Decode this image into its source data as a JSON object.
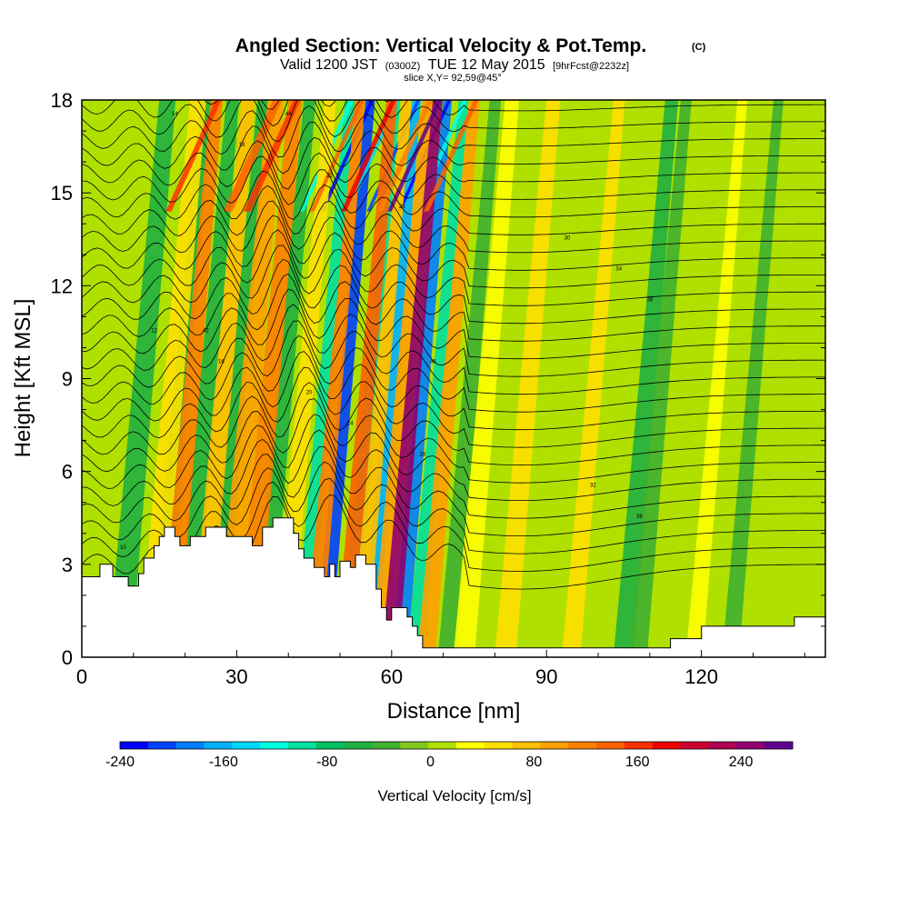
{
  "chart_data": {
    "type": "heatmap",
    "title": "Angled Section: Vertical Velocity & Pot.Temp.",
    "title_mark": "(C)",
    "subtitle_main": "Valid 1200 JST",
    "subtitle_z": "(0300Z)",
    "subtitle_date": "TUE 12 May 2015",
    "subtitle_fcst": "[9hrFcst@2232z]",
    "slice_text": "slice X,Y= 92,59@45°",
    "xlabel": "Distance [nm]",
    "ylabel": "Height [Kft MSL]",
    "xlim": [
      0,
      144
    ],
    "ylim": [
      0,
      18
    ],
    "x_ticks": [
      "0",
      "30",
      "60",
      "90",
      "120"
    ],
    "x_tick_values": [
      0,
      30,
      60,
      90,
      120
    ],
    "y_ticks": [
      "0",
      "3",
      "6",
      "9",
      "12",
      "15",
      "18"
    ],
    "y_tick_values": [
      0,
      3,
      6,
      9,
      12,
      15,
      18
    ],
    "colorbar": {
      "label": "Vertical Velocity [cm/s]",
      "range": [
        -240,
        280
      ],
      "tick_labels": [
        "-240",
        "-160",
        "-80",
        "0",
        "80",
        "160",
        "240"
      ],
      "tick_values": [
        -240,
        -160,
        -80,
        0,
        80,
        160,
        240
      ],
      "colors": [
        "#0000ff",
        "#0040ff",
        "#0080ff",
        "#00b0ff",
        "#00d8ff",
        "#00ffe0",
        "#00e0a0",
        "#00c060",
        "#20b040",
        "#40b030",
        "#80c820",
        "#b0e000",
        "#ffff00",
        "#ffe000",
        "#ffc000",
        "#ffa000",
        "#ff8000",
        "#ff6000",
        "#ff3000",
        "#ee0000",
        "#cc0030",
        "#b00050",
        "#900070",
        "#600090"
      ]
    },
    "background_color": "#b0e000",
    "updraft_bands": [
      {
        "x": 12,
        "w": 2.4,
        "v": 60
      },
      {
        "x": 16,
        "w": 1.6,
        "v": 120
      },
      {
        "x": 22,
        "w": 1.8,
        "v": 80
      },
      {
        "x": 27,
        "w": 2.5,
        "v": 100
      },
      {
        "x": 31,
        "w": 2.0,
        "v": 120
      },
      {
        "x": 38,
        "w": 1.6,
        "v": 60
      },
      {
        "x": 44,
        "w": 1.2,
        "v": 110
      },
      {
        "x": 50,
        "w": 1.4,
        "v": 140
      },
      {
        "x": 53,
        "w": 1.2,
        "v": 80
      },
      {
        "x": 57,
        "w": 1.5,
        "v": 90
      },
      {
        "x": 59,
        "w": 1.2,
        "v": 250
      },
      {
        "x": 66,
        "w": 1.4,
        "v": 100
      },
      {
        "x": 73,
        "w": 2.0,
        "v": 40
      },
      {
        "x": 81,
        "w": 2.0,
        "v": 45
      },
      {
        "x": 94,
        "w": 1.5,
        "v": 50
      },
      {
        "x": 118,
        "w": 1.2,
        "v": 30
      }
    ],
    "downdraft_bands": [
      {
        "x": 6,
        "w": 2.5,
        "v": -50
      },
      {
        "x": 14,
        "w": 1.6,
        "v": -60
      },
      {
        "x": 19,
        "w": 1.8,
        "v": -55
      },
      {
        "x": 25,
        "w": 1.5,
        "v": -60
      },
      {
        "x": 34,
        "w": 1.6,
        "v": -60
      },
      {
        "x": 42,
        "w": 1.2,
        "v": -90
      },
      {
        "x": 46,
        "w": 1.1,
        "v": -200
      },
      {
        "x": 51,
        "w": 1.0,
        "v": -100
      },
      {
        "x": 55,
        "w": 1.0,
        "v": -160
      },
      {
        "x": 61,
        "w": 1.0,
        "v": -180
      },
      {
        "x": 64,
        "w": 1.2,
        "v": -90
      },
      {
        "x": 70,
        "w": 1.5,
        "v": -40
      },
      {
        "x": 104,
        "w": 1.8,
        "v": -50
      },
      {
        "x": 107,
        "w": 1.4,
        "v": -40
      },
      {
        "x": 125,
        "w": 1.2,
        "v": -30
      }
    ],
    "terrain": [
      [
        0,
        2.6
      ],
      [
        3.5,
        2.6
      ],
      [
        3.5,
        3.0
      ],
      [
        6,
        3.0
      ],
      [
        6,
        2.6
      ],
      [
        9,
        2.6
      ],
      [
        9,
        2.3
      ],
      [
        11,
        2.3
      ],
      [
        11,
        2.7
      ],
      [
        12,
        2.7
      ],
      [
        12,
        3.2
      ],
      [
        14,
        3.2
      ],
      [
        14,
        3.6
      ],
      [
        15,
        3.6
      ],
      [
        15,
        3.9
      ],
      [
        16,
        3.9
      ],
      [
        16,
        4.2
      ],
      [
        18,
        4.2
      ],
      [
        18,
        3.9
      ],
      [
        19,
        3.9
      ],
      [
        19,
        3.6
      ],
      [
        21,
        3.6
      ],
      [
        21,
        3.9
      ],
      [
        24,
        3.9
      ],
      [
        24,
        4.2
      ],
      [
        28,
        4.2
      ],
      [
        28,
        3.9
      ],
      [
        33,
        3.9
      ],
      [
        33,
        3.6
      ],
      [
        35,
        3.6
      ],
      [
        35,
        4.2
      ],
      [
        37,
        4.2
      ],
      [
        37,
        4.5
      ],
      [
        41,
        4.5
      ],
      [
        41,
        4.0
      ],
      [
        42,
        4.0
      ],
      [
        42,
        3.5
      ],
      [
        43,
        3.5
      ],
      [
        43,
        3.2
      ],
      [
        45,
        3.2
      ],
      [
        45,
        2.9
      ],
      [
        47,
        2.9
      ],
      [
        47,
        2.6
      ],
      [
        48,
        2.6
      ],
      [
        48,
        3.0
      ],
      [
        49,
        3.0
      ],
      [
        49,
        2.6
      ],
      [
        50,
        2.6
      ],
      [
        50,
        3.1
      ],
      [
        52,
        3.1
      ],
      [
        52,
        2.9
      ],
      [
        53,
        2.9
      ],
      [
        53,
        3.3
      ],
      [
        55,
        3.3
      ],
      [
        55,
        3.0
      ],
      [
        57,
        3.0
      ],
      [
        57,
        2.2
      ],
      [
        58,
        2.2
      ],
      [
        58,
        1.6
      ],
      [
        59,
        1.6
      ],
      [
        59,
        1.2
      ],
      [
        60,
        1.2
      ],
      [
        60,
        1.6
      ],
      [
        63,
        1.6
      ],
      [
        63,
        1.3
      ],
      [
        64,
        1.3
      ],
      [
        64,
        1.0
      ],
      [
        65,
        1.0
      ],
      [
        65,
        0.7
      ],
      [
        66,
        0.7
      ],
      [
        66,
        0.3
      ],
      [
        114,
        0.3
      ],
      [
        114,
        0.6
      ],
      [
        120,
        0.6
      ],
      [
        120,
        1.0
      ],
      [
        138,
        1.0
      ],
      [
        138,
        1.3
      ],
      [
        144,
        1.3
      ]
    ],
    "isentropes": {
      "count": 30,
      "bottom_kft": 3.0,
      "spacing_kft": 0.55,
      "labels": [
        "10",
        "12",
        "14",
        "16",
        "18",
        "20",
        "22",
        "24",
        "26",
        "28",
        "30",
        "32",
        "34",
        "36",
        "38",
        "40",
        "42",
        "44",
        "46"
      ]
    }
  }
}
